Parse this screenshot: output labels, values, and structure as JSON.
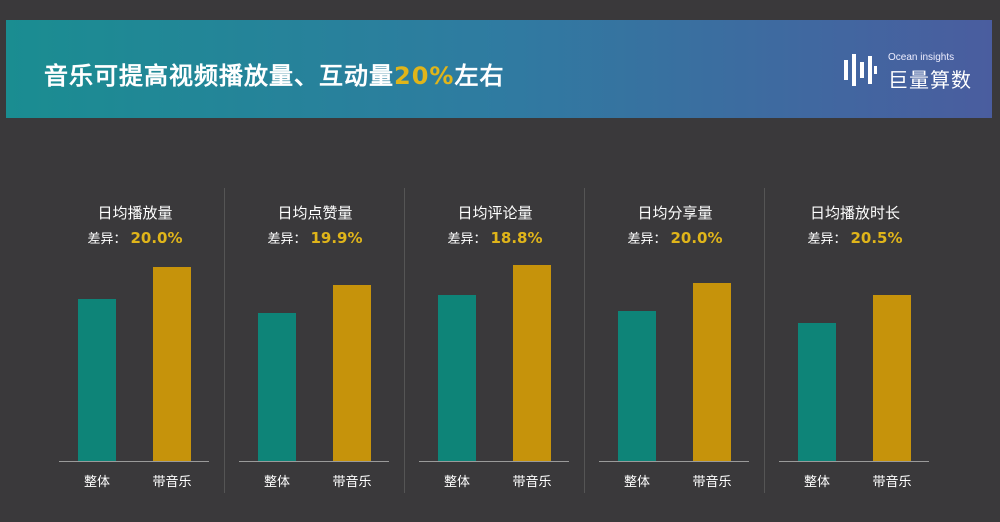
{
  "banner": {
    "title_prefix": "音乐可提高视频播放量、互动量",
    "title_highlight": "20%",
    "title_suffix": "左右",
    "logo_small": "Ocean insights",
    "logo_big": "巨量算数"
  },
  "colors": {
    "whole": "#0e8478",
    "music": "#c6930b",
    "highlight": "#e0b51a"
  },
  "chart_data": [
    {
      "type": "bar",
      "title": "日均播放量",
      "diff_label": "差异：",
      "diff": "20.0%",
      "categories": [
        "整体",
        "带音乐"
      ],
      "series": [
        {
          "values": [
            0.81,
            0.97
          ]
        }
      ]
    },
    {
      "type": "bar",
      "title": "日均点赞量",
      "diff_label": "差异：",
      "diff": "19.9%",
      "categories": [
        "整体",
        "带音乐"
      ],
      "series": [
        {
          "values": [
            0.74,
            0.88
          ]
        }
      ]
    },
    {
      "type": "bar",
      "title": "日均评论量",
      "diff_label": "差异：",
      "diff": "18.8%",
      "categories": [
        "整体",
        "带音乐"
      ],
      "series": [
        {
          "values": [
            0.83,
            0.98
          ]
        }
      ]
    },
    {
      "type": "bar",
      "title": "日均分享量",
      "diff_label": "差异：",
      "diff": "20.0%",
      "categories": [
        "整体",
        "带音乐"
      ],
      "series": [
        {
          "values": [
            0.75,
            0.89
          ]
        }
      ]
    },
    {
      "type": "bar",
      "title": "日均播放时长",
      "diff_label": "差异：",
      "diff": "20.5%",
      "categories": [
        "整体",
        "带音乐"
      ],
      "series": [
        {
          "values": [
            0.69,
            0.83
          ]
        }
      ]
    }
  ]
}
